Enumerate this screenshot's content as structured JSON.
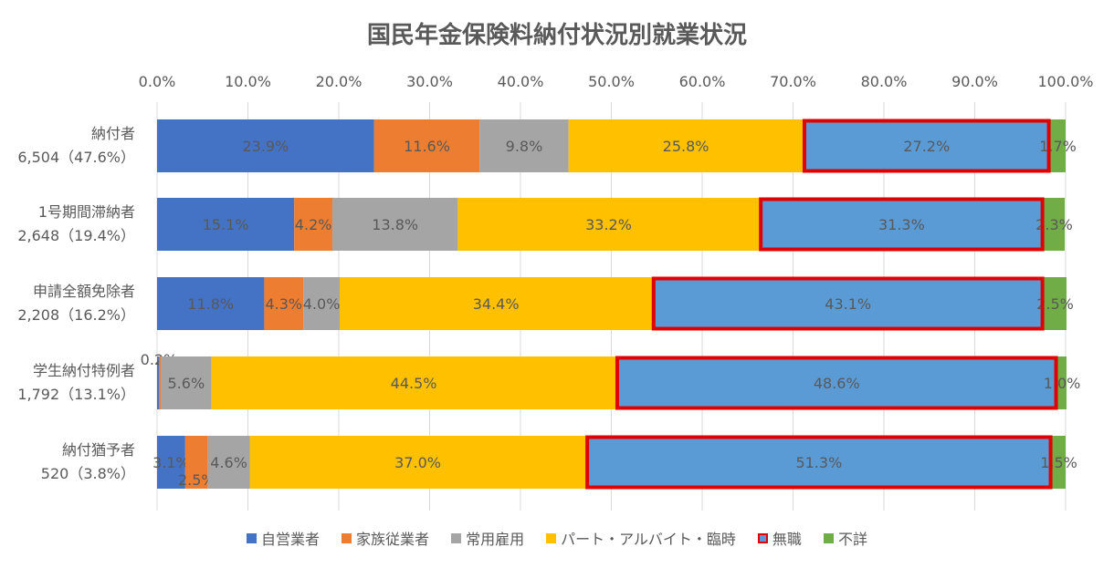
{
  "chart_data": {
    "type": "bar",
    "orientation": "horizontal",
    "stacked": "percent",
    "title": "国民年金保険料納付状況別就業状況",
    "categories": [
      [
        "納付者",
        "6,504（47.6%）"
      ],
      [
        "1号期間滞納者",
        "2,648（19.4%）"
      ],
      [
        "申請全額免除者",
        "2,208（16.2%）"
      ],
      [
        "学生納付特例者",
        "1,792（13.1%）"
      ],
      [
        "納付猶予者",
        "520（3.8%）"
      ]
    ],
    "series": [
      {
        "name": "自営業者",
        "color": "#4472c4",
        "values": [
          23.9,
          15.1,
          11.8,
          0.2,
          3.1
        ]
      },
      {
        "name": "家族従業者",
        "color": "#ed7d31",
        "values": [
          11.6,
          4.2,
          4.3,
          0.2,
          2.5
        ]
      },
      {
        "name": "常用雇用",
        "color": "#a5a5a5",
        "values": [
          9.8,
          13.8,
          4.0,
          5.6,
          4.6
        ]
      },
      {
        "name": "パート・アルバイト・臨時",
        "color": "#ffc000",
        "values": [
          25.8,
          33.2,
          34.4,
          44.5,
          37.0
        ]
      },
      {
        "name": "無職",
        "color": "#5b9bd5",
        "outline": "#e00000",
        "values": [
          27.2,
          31.3,
          43.1,
          48.6,
          51.3
        ]
      },
      {
        "name": "不詳",
        "color": "#70ad47",
        "values": [
          1.7,
          2.3,
          2.5,
          1.0,
          1.5
        ]
      }
    ],
    "data_labels": [
      [
        "23.9%",
        "11.6%",
        "9.8%",
        "25.8%",
        "27.2%",
        "1.7%"
      ],
      [
        "15.1%",
        "4.2%",
        "13.8%",
        "33.2%",
        "31.3%",
        "2.3%"
      ],
      [
        "11.8%",
        "4.3%",
        "4.0%",
        "34.4%",
        "43.1%",
        "2.5%"
      ],
      [
        "0.2%",
        "",
        "5.6%",
        "44.5%",
        "48.6%",
        "1.0%"
      ],
      [
        "3.1%",
        "2.5%",
        "4.6%",
        "37.0%",
        "51.3%",
        "1.5%"
      ]
    ],
    "xlim": [
      0,
      100
    ],
    "xticks": [
      "0.0%",
      "10.0%",
      "20.0%",
      "30.0%",
      "40.0%",
      "50.0%",
      "60.0%",
      "70.0%",
      "80.0%",
      "90.0%",
      "100.0%"
    ],
    "x_axis_position": "top",
    "grid": true,
    "legend_position": "bottom"
  }
}
